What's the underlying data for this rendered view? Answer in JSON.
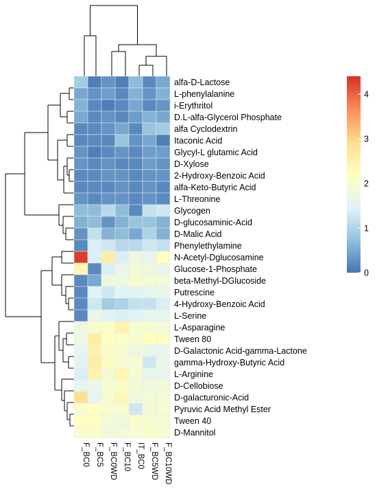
{
  "chart_data": {
    "type": "heatmap",
    "title": "",
    "columns": [
      "F_BC0",
      "F_BC5",
      "F_BC0WD",
      "F_BC10",
      "IT_BC0",
      "F_BC5WD",
      "F_BC10WD"
    ],
    "rows": [
      "alfa-D-Lactose",
      "L-phenylalanine",
      "i-Erythritol",
      "D.L-alfa-Glycerol Phosphate",
      "alfa Cyclodextrin",
      "Itaconic Acid",
      "Glycyl-L glutamic Acid",
      "D-Xylose",
      "2-Hydroxy-Benzoic Acid",
      "alfa-Keto-Butyric Acid",
      "L-Threonine",
      "Glycogen",
      "D-glucosaminic-Acid",
      "D-Malic Acid",
      "Phenylethylamine",
      "N-Acetyl-Dglucosamine",
      "Glucose-1-Phosphate",
      "beta-Methyl-DGlucoside",
      "Putrescine",
      "4-Hydroxy-Benzoic Acid",
      "L-Serine",
      "L-Asparagine",
      "Tween 80",
      "D-Galactonic Acid-gamma-Lactone",
      "gamma-Hydroxy-Butyric Acid",
      "L-Arginine",
      "D-Cellobiose",
      "D-galacturonic-Acid",
      "Pyruvic Acid Methyl Ester",
      "Tween 40",
      "D-Mannitol"
    ],
    "values": [
      [
        0.9,
        0.1,
        0.3,
        0.1,
        0.7,
        0.2,
        0.5
      ],
      [
        0.5,
        0.3,
        0.4,
        0.2,
        0.6,
        0.3,
        0.6
      ],
      [
        0.6,
        0.2,
        0.1,
        0.2,
        0.5,
        0.2,
        0.3
      ],
      [
        0.5,
        0.2,
        0.3,
        0.2,
        0.4,
        0.6,
        0.5
      ],
      [
        0.2,
        0.2,
        0.3,
        0.5,
        0.2,
        0.8,
        0.9
      ],
      [
        0.2,
        0.2,
        0.2,
        0.8,
        0.3,
        0.5,
        0.1
      ],
      [
        0.3,
        0.1,
        0.2,
        0.3,
        0.2,
        0.4,
        0.4
      ],
      [
        0.3,
        0.2,
        0.3,
        0.2,
        0.2,
        0.4,
        0.3
      ],
      [
        0.2,
        0.2,
        0.3,
        0.3,
        0.2,
        0.3,
        0.3
      ],
      [
        0.2,
        0.2,
        0.2,
        0.3,
        0.2,
        0.3,
        0.2
      ],
      [
        0.3,
        0.2,
        0.3,
        0.3,
        0.2,
        0.3,
        0.2
      ],
      [
        0.7,
        0.7,
        1.1,
        0.7,
        0.2,
        1.2,
        1.3
      ],
      [
        0.6,
        0.7,
        0.3,
        0.6,
        0.8,
        0.8,
        0.6
      ],
      [
        0.3,
        1.2,
        0.6,
        0.7,
        0.5,
        1.0,
        0.6
      ],
      [
        0.2,
        1.4,
        1.3,
        1.1,
        1.1,
        1.3,
        1.2
      ],
      [
        4.3,
        1.4,
        2.6,
        1.4,
        1.8,
        1.6,
        2.2
      ],
      [
        2.4,
        0.2,
        1.4,
        1.7,
        1.9,
        1.8,
        1.7
      ],
      [
        0.2,
        0.5,
        1.8,
        1.8,
        2.0,
        1.9,
        1.9
      ],
      [
        0.2,
        1.5,
        1.3,
        1.5,
        1.5,
        1.6,
        1.7
      ],
      [
        0.2,
        1.3,
        0.9,
        1.0,
        1.2,
        1.2,
        1.4
      ],
      [
        0.2,
        1.7,
        1.5,
        1.4,
        1.5,
        1.6,
        1.6
      ],
      [
        1.8,
        2.0,
        2.1,
        2.5,
        2.0,
        2.0,
        1.9
      ],
      [
        1.8,
        2.6,
        2.2,
        2.1,
        2.0,
        2.2,
        2.1
      ],
      [
        1.6,
        2.5,
        2.1,
        2.0,
        1.8,
        1.7,
        1.6
      ],
      [
        1.5,
        2.6,
        2.3,
        2.0,
        2.0,
        1.3,
        1.7
      ],
      [
        1.4,
        2.5,
        1.9,
        2.4,
        2.0,
        1.6,
        1.6
      ],
      [
        1.6,
        1.7,
        2.0,
        2.1,
        1.9,
        1.8,
        1.9
      ],
      [
        2.9,
        1.6,
        2.0,
        2.4,
        1.8,
        1.9,
        1.9
      ],
      [
        2.0,
        2.2,
        2.0,
        2.0,
        1.3,
        1.9,
        2.0
      ],
      [
        2.2,
        2.2,
        1.9,
        1.8,
        2.1,
        2.0,
        1.9
      ],
      [
        2.0,
        2.1,
        1.8,
        1.9,
        2.0,
        2.1,
        2.0
      ]
    ],
    "colorbar": {
      "range": [
        0,
        4.4
      ],
      "ticks": [
        0,
        1,
        2,
        3,
        4
      ],
      "stops": [
        "#4575b4",
        "#91bfdb",
        "#e0f3f8",
        "#ffffbf",
        "#fee090",
        "#fc8d59",
        "#d73027"
      ]
    },
    "row_dendrogram": "left",
    "column_dendrogram": "top"
  }
}
